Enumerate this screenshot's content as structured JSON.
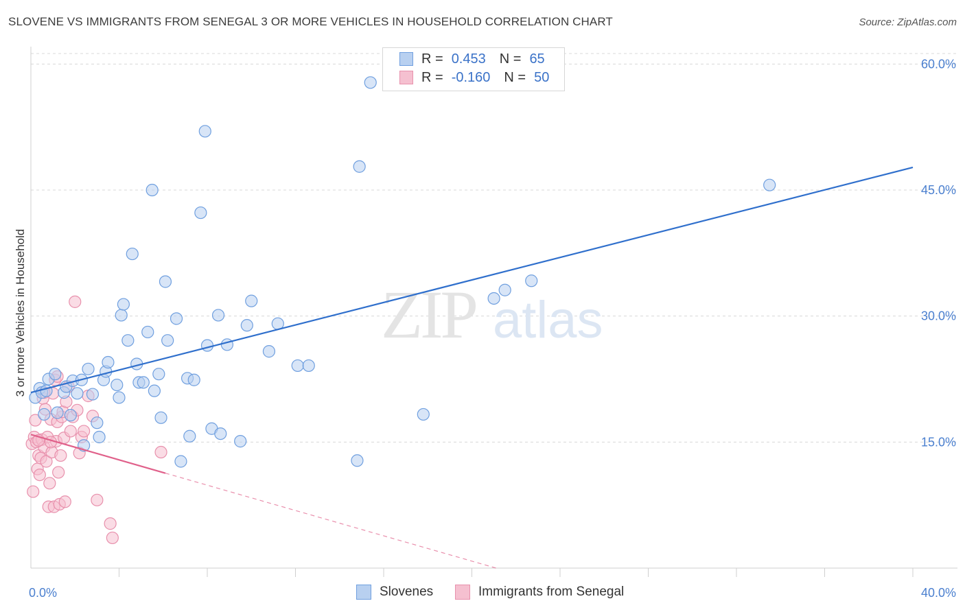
{
  "header": {
    "title": "SLOVENE VS IMMIGRANTS FROM SENEGAL 3 OR MORE VEHICLES IN HOUSEHOLD CORRELATION CHART",
    "source": "Source: ZipAtlas.com"
  },
  "watermark": {
    "zip": "ZIP",
    "atlas": "atlas"
  },
  "legend_top": [
    {
      "r_label": "R =",
      "r_value": "0.453",
      "n_label": "N =",
      "n_value": "65"
    },
    {
      "r_label": "R =",
      "r_value": "-0.160",
      "n_label": "N =",
      "n_value": "50"
    }
  ],
  "colors": {
    "blue_fill": "#b8d0f0",
    "blue_stroke": "#6f9fdf",
    "blue_line": "#2f6fcc",
    "pink_fill": "#f5c0d0",
    "pink_stroke": "#e890ac",
    "pink_line": "#e0608a",
    "grid": "#d8d8d8",
    "axis_text": "#4a7fcf"
  },
  "chart_data": {
    "type": "scatter",
    "title": "SLOVENE VS IMMIGRANTS FROM SENEGAL 3 OR MORE VEHICLES IN HOUSEHOLD CORRELATION CHART",
    "xlabel": "",
    "ylabel": "3 or more Vehicles in Household",
    "xlim": [
      0,
      40
    ],
    "ylim": [
      0,
      61.5
    ],
    "x_tick_labels": [
      {
        "value": 0,
        "label": "0.0%"
      },
      {
        "value": 40,
        "label": "40.0%"
      }
    ],
    "y_tick_labels": [
      {
        "value": 15,
        "label": "15.0%"
      },
      {
        "value": 30,
        "label": "30.0%"
      },
      {
        "value": 45,
        "label": "45.0%"
      },
      {
        "value": 60,
        "label": "60.0%"
      }
    ],
    "x_minor_ticks": [
      4,
      8,
      12,
      16,
      20,
      24,
      28,
      32,
      36,
      40
    ],
    "series": [
      {
        "name": "Slovenes",
        "color": "#6f9fdf",
        "trend": {
          "x0": 0,
          "y0": 20.9,
          "x1": 40,
          "y1": 47.7,
          "dashed_to": null
        },
        "points": [
          [
            0.2,
            20.3
          ],
          [
            0.4,
            21.4
          ],
          [
            0.5,
            20.9
          ],
          [
            0.6,
            18.3
          ],
          [
            0.7,
            21.1
          ],
          [
            0.8,
            22.5
          ],
          [
            1.1,
            23.1
          ],
          [
            1.2,
            18.5
          ],
          [
            1.5,
            20.9
          ],
          [
            1.6,
            21.6
          ],
          [
            1.8,
            18.2
          ],
          [
            1.9,
            22.3
          ],
          [
            2.1,
            20.8
          ],
          [
            2.3,
            22.4
          ],
          [
            2.4,
            14.6
          ],
          [
            2.6,
            23.7
          ],
          [
            2.8,
            20.7
          ],
          [
            3.0,
            17.3
          ],
          [
            3.1,
            15.6
          ],
          [
            3.3,
            22.4
          ],
          [
            3.4,
            23.4
          ],
          [
            3.5,
            24.5
          ],
          [
            3.9,
            21.8
          ],
          [
            4.0,
            20.3
          ],
          [
            4.1,
            30.1
          ],
          [
            4.2,
            31.4
          ],
          [
            4.4,
            27.1
          ],
          [
            4.6,
            37.4
          ],
          [
            4.8,
            24.3
          ],
          [
            4.9,
            22.1
          ],
          [
            5.1,
            22.1
          ],
          [
            5.3,
            28.1
          ],
          [
            5.5,
            45.0
          ],
          [
            5.6,
            21.1
          ],
          [
            5.8,
            23.1
          ],
          [
            5.9,
            17.9
          ],
          [
            6.1,
            34.1
          ],
          [
            6.2,
            27.1
          ],
          [
            6.6,
            29.7
          ],
          [
            6.8,
            12.7
          ],
          [
            7.1,
            22.6
          ],
          [
            7.2,
            15.7
          ],
          [
            7.4,
            22.4
          ],
          [
            7.7,
            42.3
          ],
          [
            7.9,
            52.0
          ],
          [
            8.0,
            26.5
          ],
          [
            8.2,
            16.6
          ],
          [
            8.5,
            30.1
          ],
          [
            8.6,
            16.0
          ],
          [
            8.9,
            26.6
          ],
          [
            9.5,
            15.1
          ],
          [
            9.8,
            28.9
          ],
          [
            10.0,
            31.8
          ],
          [
            10.8,
            25.8
          ],
          [
            11.2,
            29.1
          ],
          [
            12.1,
            24.1
          ],
          [
            12.6,
            24.1
          ],
          [
            14.8,
            12.8
          ],
          [
            14.9,
            47.8
          ],
          [
            15.4,
            57.8
          ],
          [
            17.8,
            18.3
          ],
          [
            21.0,
            32.1
          ],
          [
            21.5,
            33.1
          ],
          [
            22.7,
            34.2
          ],
          [
            33.5,
            45.6
          ]
        ]
      },
      {
        "name": "Immigrants from Senegal",
        "color": "#e890ac",
        "trend": {
          "x0": 0,
          "y0": 15.9,
          "x1": 6.1,
          "y1": 11.3,
          "dashed_to": {
            "x": 21.1,
            "y": 0
          }
        },
        "points": [
          [
            0.05,
            14.8
          ],
          [
            0.1,
            9.1
          ],
          [
            0.15,
            15.6
          ],
          [
            0.2,
            17.6
          ],
          [
            0.25,
            15.0
          ],
          [
            0.3,
            11.8
          ],
          [
            0.35,
            13.4
          ],
          [
            0.4,
            11.1
          ],
          [
            0.45,
            13.1
          ],
          [
            0.5,
            15.3
          ],
          [
            0.55,
            20.2
          ],
          [
            0.6,
            14.4
          ],
          [
            0.65,
            18.9
          ],
          [
            0.7,
            12.7
          ],
          [
            0.75,
            15.6
          ],
          [
            0.8,
            7.3
          ],
          [
            0.85,
            10.1
          ],
          [
            0.9,
            17.7
          ],
          [
            0.95,
            13.8
          ],
          [
            1.0,
            20.8
          ],
          [
            1.05,
            7.3
          ],
          [
            1.1,
            22.4
          ],
          [
            1.15,
            15.1
          ],
          [
            1.2,
            17.4
          ],
          [
            1.25,
            11.4
          ],
          [
            1.3,
            7.6
          ],
          [
            1.35,
            13.4
          ],
          [
            1.4,
            18.0
          ],
          [
            1.45,
            18.6
          ],
          [
            1.5,
            15.5
          ],
          [
            1.55,
            7.9
          ],
          [
            1.6,
            19.8
          ],
          [
            1.7,
            21.6
          ],
          [
            1.8,
            16.3
          ],
          [
            1.9,
            18.0
          ],
          [
            2.0,
            31.7
          ],
          [
            2.1,
            18.8
          ],
          [
            2.2,
            13.7
          ],
          [
            2.3,
            15.6
          ],
          [
            2.4,
            16.3
          ],
          [
            2.6,
            20.5
          ],
          [
            2.8,
            18.1
          ],
          [
            3.0,
            8.1
          ],
          [
            3.6,
            5.3
          ],
          [
            3.7,
            3.6
          ],
          [
            5.9,
            13.8
          ],
          [
            1.2,
            22.8
          ],
          [
            0.6,
            20.9
          ],
          [
            0.35,
            15.2
          ],
          [
            0.9,
            15.0
          ]
        ]
      }
    ]
  },
  "bottom_legend": [
    {
      "label": "Slovenes"
    },
    {
      "label": "Immigrants from Senegal"
    }
  ]
}
